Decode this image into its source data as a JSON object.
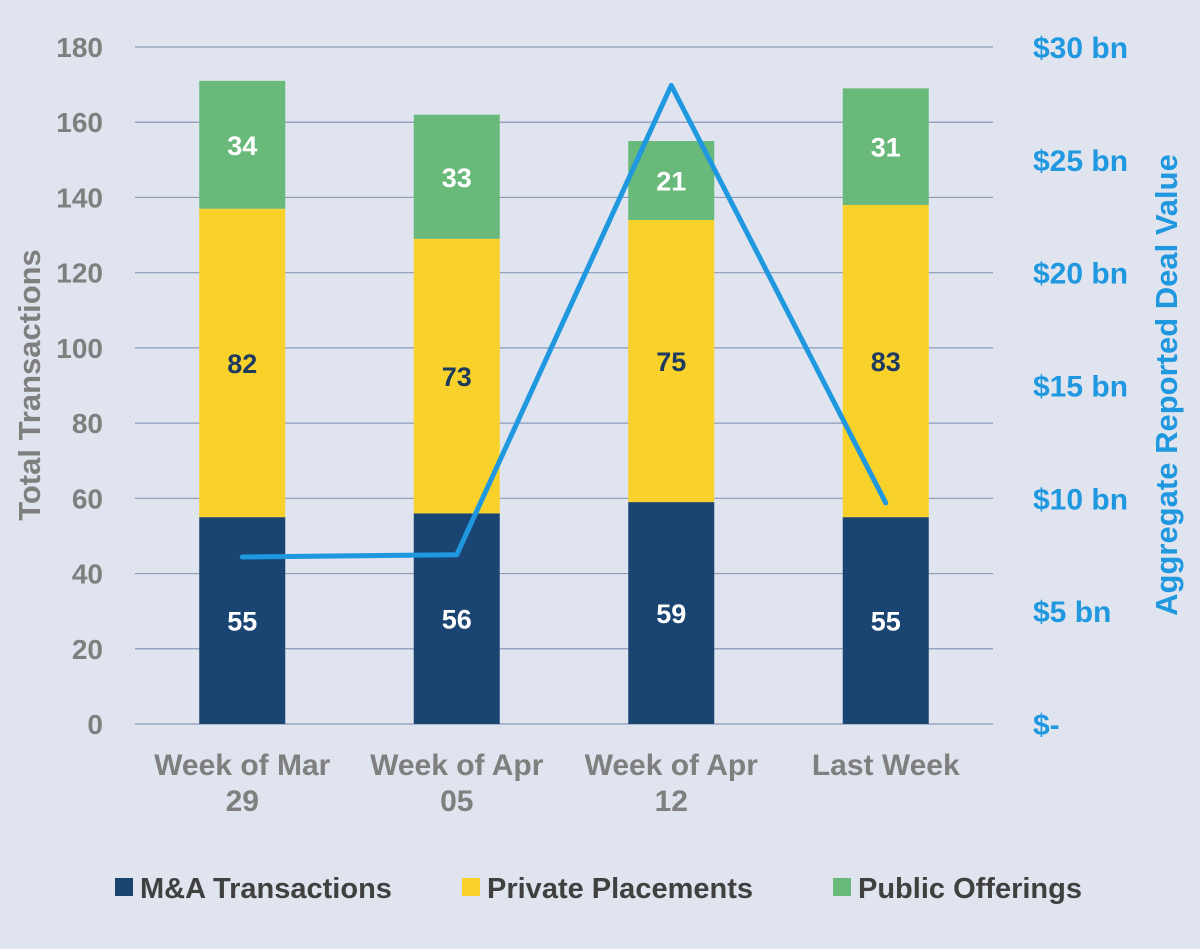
{
  "chart_data": {
    "type": "bar",
    "stacked": true,
    "categories": [
      [
        "Week of Mar",
        "29"
      ],
      [
        "Week of Apr",
        "05"
      ],
      [
        "Week of Apr",
        "12"
      ],
      [
        "Last Week"
      ]
    ],
    "series": [
      {
        "name": "M&A Transactions",
        "color": "#1a4472",
        "label_color": "#ffffff",
        "values": [
          55,
          56,
          59,
          55
        ]
      },
      {
        "name": "Private Placements",
        "color": "#f9d12b",
        "label_color": "#1f3a5f",
        "values": [
          82,
          73,
          75,
          83
        ]
      },
      {
        "name": "Public Offerings",
        "color": "#69b97a",
        "label_color": "#ffffff",
        "values": [
          34,
          33,
          21,
          31
        ]
      }
    ],
    "line_series": {
      "name": "Aggregate Reported Deal Value",
      "color": "#1f98e0",
      "axis": "right",
      "values_bn": [
        7.4,
        7.5,
        28.3,
        9.8
      ]
    },
    "y_left": {
      "label": "Total Transactions",
      "min": 0,
      "max": 180,
      "step": 20,
      "ticks": [
        "0",
        "20",
        "40",
        "60",
        "80",
        "100",
        "120",
        "140",
        "160",
        "180"
      ]
    },
    "y_right": {
      "label": "Aggregate Reported Deal Value",
      "min": 0,
      "max": 30,
      "step": 5,
      "ticks": [
        "$-",
        "$5 bn",
        "$10 bn",
        "$15 bn",
        "$20 bn",
        "$25 bn",
        "$30 bn"
      ]
    },
    "grid": true,
    "legend_position": "bottom"
  }
}
